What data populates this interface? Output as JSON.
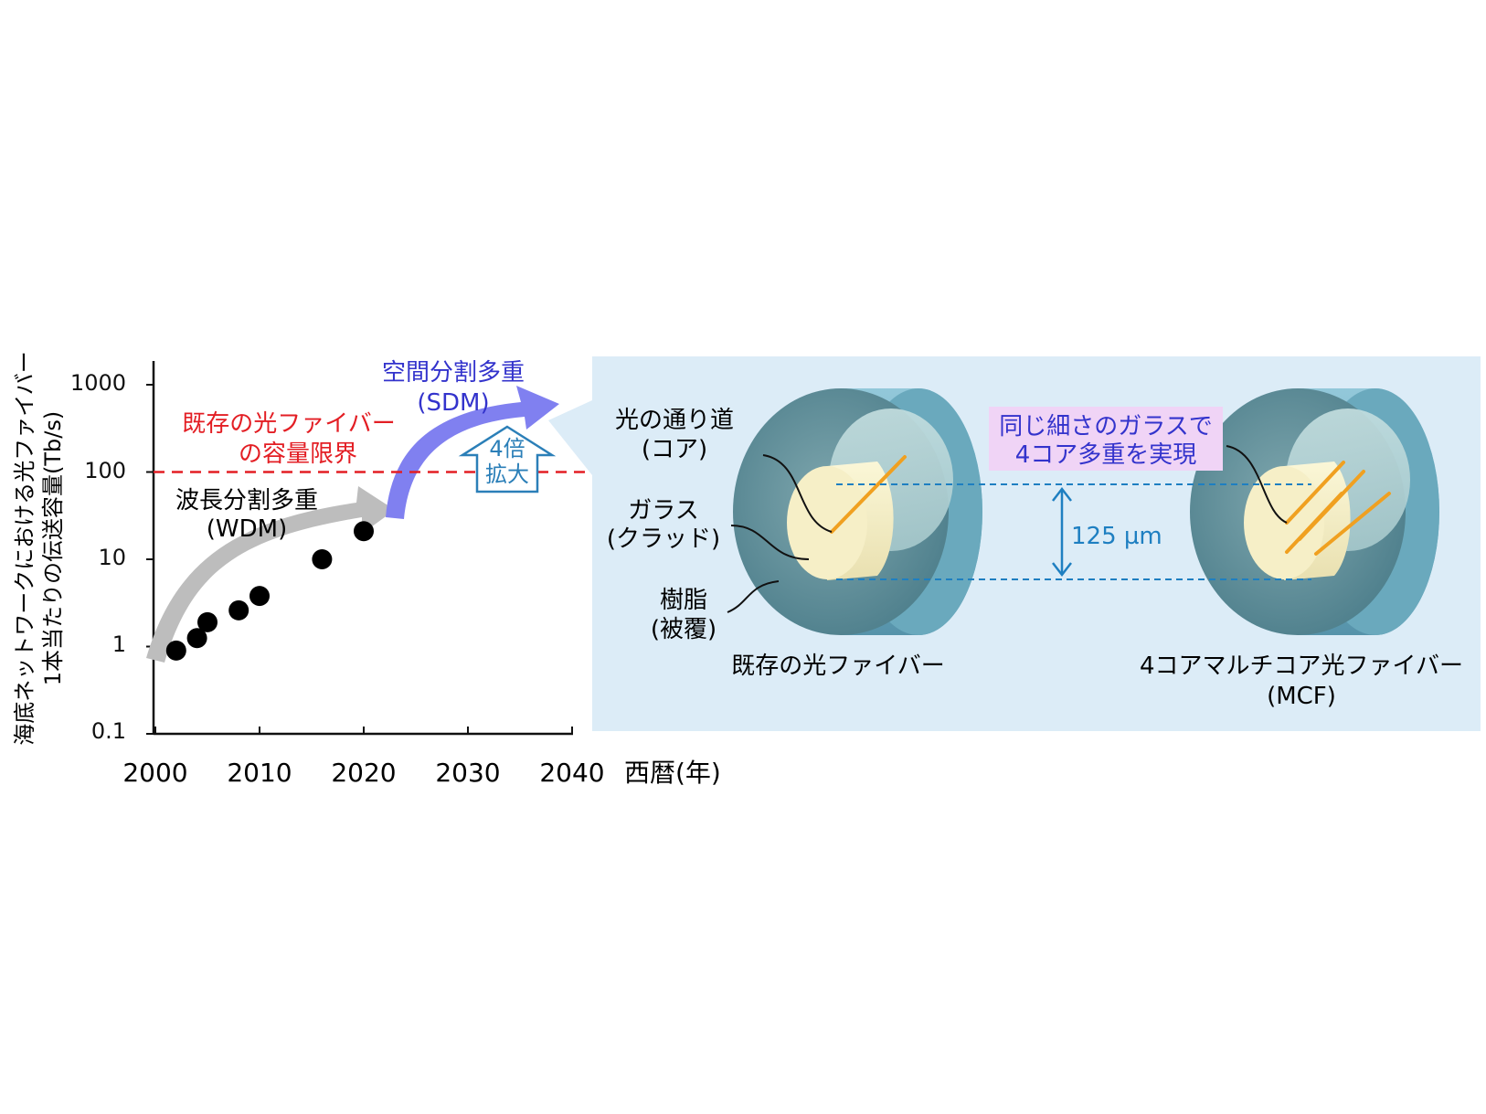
{
  "chart_data": {
    "type": "scatter",
    "y_scale": "log",
    "ylabel_line1": "海底ネットワークにおける光ファイバー",
    "ylabel_line2": "1本当たりの伝送容量(Tb/s)",
    "xlabel": "西暦(年)",
    "xlim": [
      2000,
      2040
    ],
    "ylim": [
      0.1,
      1000
    ],
    "x_ticks": [
      "2000",
      "2010",
      "2020",
      "2030",
      "2040"
    ],
    "y_ticks": [
      "0.1",
      "1",
      "10",
      "100",
      "1000"
    ],
    "grid": false,
    "series": [
      {
        "points": [
          {
            "x": 2002,
            "y": 0.9
          },
          {
            "x": 2004,
            "y": 1.25
          },
          {
            "x": 2005,
            "y": 1.9
          },
          {
            "x": 2008,
            "y": 2.6
          },
          {
            "x": 2010,
            "y": 3.8
          },
          {
            "x": 2016,
            "y": 10
          },
          {
            "x": 2020,
            "y": 21
          }
        ]
      }
    ],
    "reference_line": {
      "y": 100,
      "label_line1": "既存の光ファイバー",
      "label_line2": "の容量限界",
      "color": "#e31e24"
    },
    "annotations": {
      "wdm_line1": "波長分割多重",
      "wdm_line2": "(WDM)",
      "sdm_line1": "空間分割多重",
      "sdm_line2": "(SDM)",
      "boost_line1": "4倍",
      "boost_line2": "拡大"
    }
  },
  "diagram": {
    "left_labels": {
      "core_line1": "光の通り道",
      "core_line2": "(コア)",
      "clad_line1": "ガラス",
      "clad_line2": "(クラッド)",
      "resin_line1": "樹脂",
      "resin_line2": "(被覆)"
    },
    "existing_fiber_caption": "既存の光ファイバー",
    "mcf_caption_line1": "4コアマルチコア光ファイバー",
    "mcf_caption_line2": "(MCF)",
    "highlight_line1": "同じ細さのガラスで",
    "highlight_line2": "4コア多重を実現",
    "dimension": "125 µm"
  },
  "colors": {
    "accent_blue": "#3333cc",
    "limit_red": "#e31e24",
    "dimension_blue": "#1e7fc1",
    "panel_bg": "#dcecf7",
    "highlight_bg": "#f0d4f6",
    "core_orange": "#f0a020",
    "sdm_arrow": "#8080f0",
    "wdm_arrow": "#bdbdbd"
  }
}
